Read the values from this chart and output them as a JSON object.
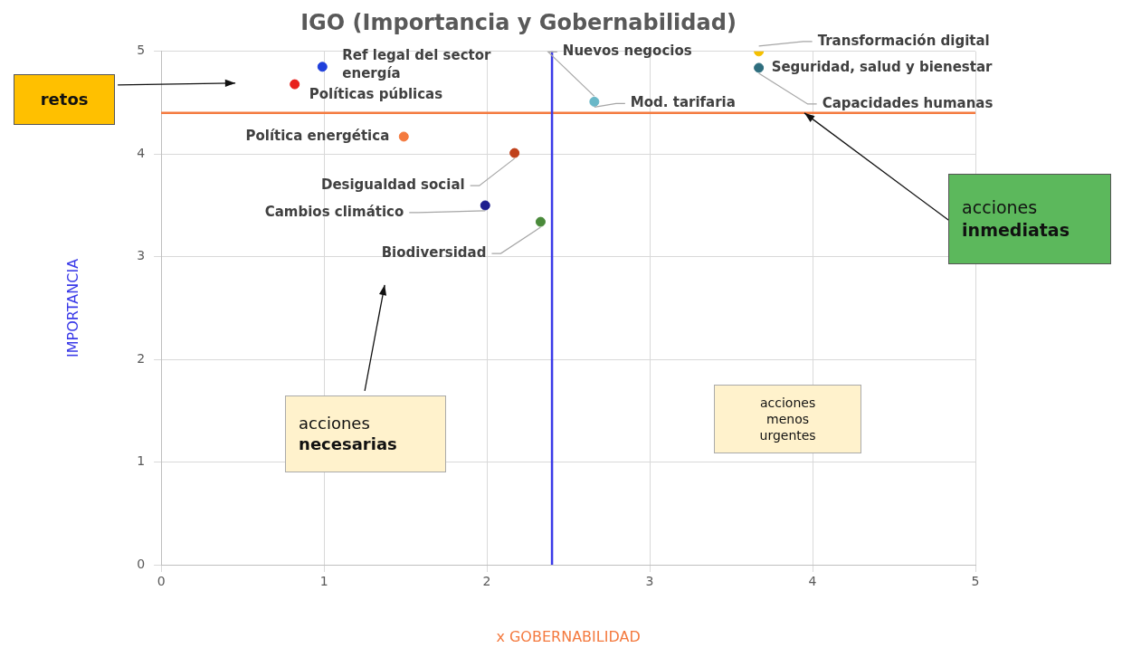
{
  "chart_data": {
    "type": "scatter",
    "title": "IGO (Importancia y Gobernabilidad)",
    "xlabel": "x GOBERNABILIDAD",
    "ylabel": "IMPORTANCIA",
    "xlim": [
      0,
      5
    ],
    "xticks": [
      0,
      1,
      2,
      3,
      4,
      5
    ],
    "ylim": [
      0,
      5
    ],
    "yticks": [
      0,
      1,
      2,
      3,
      4,
      5
    ],
    "grid": true,
    "legend": false,
    "marker": "circle",
    "series": [
      {
        "name": "Ref legal del sector energía",
        "color": "#1f3fdb",
        "x": [
          0.99
        ],
        "values": [
          4.85
        ]
      },
      {
        "name": "Políticas públicas",
        "color": "#e8201c",
        "x": [
          0.82
        ],
        "values": [
          4.68
        ]
      },
      {
        "name": "Política energética",
        "color": "#f47a3f",
        "x": [
          1.49
        ],
        "values": [
          4.17
        ]
      },
      {
        "name": "Desigualdad social",
        "color": "#c0401a",
        "x": [
          2.17
        ],
        "values": [
          4.01
        ]
      },
      {
        "name": "Cambios climático",
        "color": "#1f1f8f",
        "x": [
          1.99
        ],
        "values": [
          3.5
        ]
      },
      {
        "name": "Biodiversidad",
        "color": "#4a8a3a",
        "x": [
          2.33
        ],
        "values": [
          3.34
        ]
      },
      {
        "name": "Mod. tarifaria",
        "color": "#6ab8c8",
        "x": [
          2.66
        ],
        "values": [
          4.51
        ]
      },
      {
        "name": "Transformación digital",
        "color": "#f5c000",
        "x": [
          3.67
        ],
        "values": [
          5.0
        ]
      },
      {
        "name": "Seguridad, salud y bienestar",
        "color": "#2e6e7e",
        "x": [
          3.67
        ],
        "values": [
          4.84
        ]
      }
    ],
    "ref_lines": [
      {
        "axis": "y",
        "value": 4.4,
        "color": "#f47a3f"
      },
      {
        "axis": "x",
        "value": 2.4,
        "color": "#3a3ae8"
      }
    ],
    "annotations": [
      {
        "text": "Nuevos negocios",
        "x": 2.66,
        "y": 4.51
      },
      {
        "text": "Capacidades humanas",
        "x": 3.67,
        "y": 4.84
      },
      "retos",
      {
        "text": "acciones\ninmediatas",
        "x": 3.95,
        "y": 4.4
      },
      "acciones\nnecesarias",
      "acciones\nmenos\nurgentes"
    ]
  }
}
